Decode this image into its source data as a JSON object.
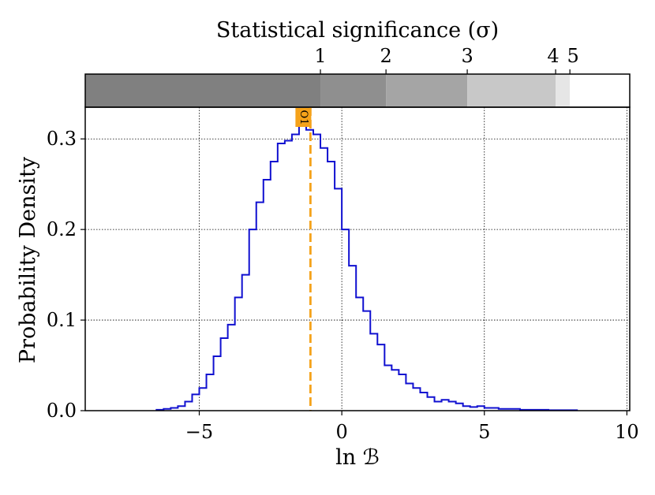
{
  "chart_data": {
    "type": "histogram",
    "top_axis": {
      "title": "Statistical significance (σ)",
      "ticks": [
        {
          "label": "1",
          "x": -0.75
        },
        {
          "label": "2",
          "x": 1.55
        },
        {
          "label": "3",
          "x": 4.4
        },
        {
          "label": "4",
          "x": 7.5
        },
        {
          "label": "5",
          "x": 8.0
        }
      ],
      "shade_bands": [
        {
          "from": -9.0,
          "to": -0.75,
          "color": "#808080"
        },
        {
          "from": -0.75,
          "to": 1.55,
          "color": "#8f8f8f"
        },
        {
          "from": 1.55,
          "to": 4.4,
          "color": "#a5a5a5"
        },
        {
          "from": 4.4,
          "to": 7.5,
          "color": "#c8c8c8"
        },
        {
          "from": 7.5,
          "to": 8.0,
          "color": "#e6e6e6"
        },
        {
          "from": 8.0,
          "to": 10.1,
          "color": "#ffffff"
        }
      ]
    },
    "xlabel": "ln ℬ",
    "ylabel": "Probability Density",
    "xlim": [
      -9.0,
      10.1
    ],
    "ylim": [
      0.0,
      0.335
    ],
    "xticks": [
      {
        "label": "−5",
        "value": -5
      },
      {
        "label": "0",
        "value": 0
      },
      {
        "label": "5",
        "value": 5
      },
      {
        "label": "10",
        "value": 10
      }
    ],
    "yticks": [
      {
        "label": "0.0",
        "value": 0.0
      },
      {
        "label": "0.1",
        "value": 0.1
      },
      {
        "label": "0.2",
        "value": 0.2
      },
      {
        "label": "0.3",
        "value": 0.3
      }
    ],
    "grid": true,
    "series": [
      {
        "color": "#1010d0",
        "bin_start": -6.5,
        "bin_width": 0.25,
        "densities": [
          0.001,
          0.002,
          0.003,
          0.005,
          0.01,
          0.018,
          0.025,
          0.04,
          0.06,
          0.08,
          0.095,
          0.125,
          0.15,
          0.2,
          0.23,
          0.255,
          0.275,
          0.295,
          0.298,
          0.305,
          0.315,
          0.31,
          0.305,
          0.29,
          0.275,
          0.245,
          0.2,
          0.16,
          0.125,
          0.11,
          0.085,
          0.073,
          0.05,
          0.045,
          0.04,
          0.03,
          0.025,
          0.02,
          0.015,
          0.01,
          0.012,
          0.01,
          0.008,
          0.005,
          0.004,
          0.005,
          0.003,
          0.003,
          0.002,
          0.002,
          0.002,
          0.001,
          0.001,
          0.001,
          0.001,
          0.0005,
          0.0005,
          0.0005,
          0.0005
        ]
      }
    ],
    "marker": {
      "label": "O1",
      "x": -1.1,
      "color": "#f5a21a"
    }
  }
}
